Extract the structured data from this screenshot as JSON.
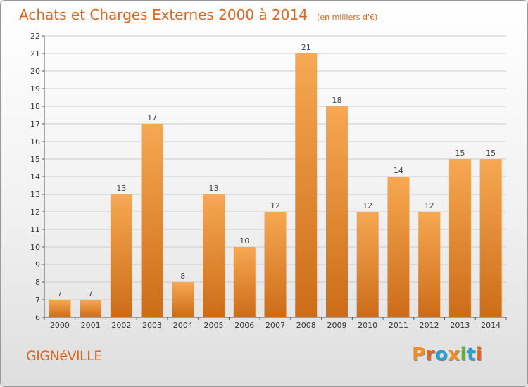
{
  "header": {
    "title": "Achats et Charges Externes 2000 à 2014",
    "subtitle": "(en milliers d'€)"
  },
  "footer": {
    "commune": "GIGNéVILLE",
    "brand": "Proxiti",
    "brand_colors": [
      "#f28c1e",
      "#e0661e",
      "#27a0d8",
      "#f28c1e",
      "#5cb531",
      "#27a0d8",
      "#e0661e"
    ]
  },
  "colors": {
    "bar_top": "#f7a852",
    "bar_bottom": "#cc6c18",
    "accent": "#e0661e",
    "grid": "#cccccc"
  },
  "chart_data": {
    "type": "bar",
    "title": "Achats et Charges Externes 2000 à 2014",
    "subtitle": "(en milliers d'€)",
    "xlabel": "",
    "ylabel": "",
    "categories": [
      "2000",
      "2001",
      "2002",
      "2003",
      "2004",
      "2005",
      "2006",
      "2007",
      "2008",
      "2009",
      "2010",
      "2011",
      "2012",
      "2013",
      "2014"
    ],
    "values": [
      7,
      7,
      13,
      17,
      8,
      13,
      10,
      12,
      21,
      18,
      12,
      14,
      12,
      15,
      15
    ],
    "ylim": [
      6,
      22
    ],
    "yticks": [
      6,
      7,
      8,
      9,
      10,
      11,
      12,
      13,
      14,
      15,
      16,
      17,
      18,
      19,
      20,
      21,
      22
    ],
    "grid": true,
    "data_labels": true
  }
}
